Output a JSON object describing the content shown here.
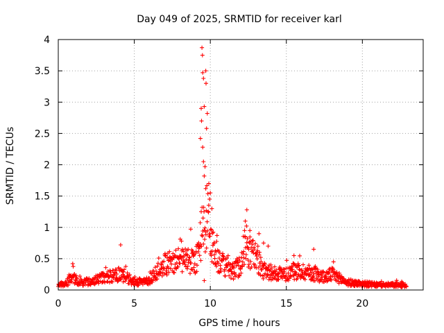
{
  "chart_data": {
    "type": "scatter",
    "title": "Day 049 of 2025, SRMTID for receiver karl",
    "xlabel": "GPS time / hours",
    "ylabel": "SRMTID / TECUs",
    "xlim": [
      0,
      24
    ],
    "ylim": [
      0,
      4
    ],
    "xticks": [
      0,
      5,
      10,
      15,
      20
    ],
    "xtick_labels": [
      "0",
      "5",
      "10",
      "15",
      "20"
    ],
    "yticks": [
      0,
      0.5,
      1,
      1.5,
      2,
      2.5,
      3,
      3.5,
      4
    ],
    "ytick_labels": [
      "0",
      "0.5",
      "1",
      "1.5",
      "2",
      "2.5",
      "3",
      "3.5",
      "4"
    ],
    "grid": true,
    "marker": "+",
    "color": "#ff0000",
    "series": [
      {
        "name": "SRMTID",
        "x_range": [
          0,
          22.9
        ],
        "profile": [
          [
            0.0,
            0.08
          ],
          [
            0.5,
            0.1
          ],
          [
            0.9,
            0.2
          ],
          [
            1.5,
            0.12
          ],
          [
            2.5,
            0.15
          ],
          [
            3.0,
            0.2
          ],
          [
            3.5,
            0.22
          ],
          [
            4.0,
            0.25
          ],
          [
            4.5,
            0.2
          ],
          [
            5.0,
            0.12
          ],
          [
            6.0,
            0.15
          ],
          [
            6.5,
            0.3
          ],
          [
            7.0,
            0.4
          ],
          [
            7.5,
            0.45
          ],
          [
            8.0,
            0.5
          ],
          [
            8.5,
            0.45
          ],
          [
            9.0,
            0.45
          ],
          [
            9.3,
            0.6
          ],
          [
            9.45,
            1.1
          ],
          [
            9.6,
            0.9
          ],
          [
            9.8,
            1.2
          ],
          [
            10.0,
            0.8
          ],
          [
            10.5,
            0.5
          ],
          [
            11.0,
            0.35
          ],
          [
            11.5,
            0.3
          ],
          [
            12.0,
            0.4
          ],
          [
            12.3,
            0.8
          ],
          [
            12.5,
            0.6
          ],
          [
            13.0,
            0.55
          ],
          [
            13.5,
            0.3
          ],
          [
            14.0,
            0.28
          ],
          [
            15.0,
            0.25
          ],
          [
            15.5,
            0.3
          ],
          [
            16.0,
            0.3
          ],
          [
            16.5,
            0.28
          ],
          [
            17.0,
            0.25
          ],
          [
            17.5,
            0.2
          ],
          [
            18.0,
            0.25
          ],
          [
            19.0,
            0.12
          ],
          [
            20.0,
            0.1
          ],
          [
            21.0,
            0.08
          ],
          [
            22.0,
            0.08
          ],
          [
            22.9,
            0.08
          ]
        ],
        "peaks": [
          [
            0.95,
            0.42
          ],
          [
            4.1,
            0.72
          ],
          [
            8.1,
            0.78
          ],
          [
            9.45,
            3.87
          ],
          [
            9.48,
            3.75
          ],
          [
            9.5,
            3.47
          ],
          [
            9.55,
            3.38
          ],
          [
            9.7,
            3.5
          ],
          [
            9.72,
            3.3
          ],
          [
            9.6,
            2.93
          ],
          [
            9.4,
            2.9
          ],
          [
            9.8,
            2.82
          ],
          [
            9.42,
            2.7
          ],
          [
            9.75,
            2.58
          ],
          [
            9.35,
            2.42
          ],
          [
            9.5,
            2.28
          ],
          [
            9.55,
            2.05
          ],
          [
            9.65,
            1.97
          ],
          [
            9.6,
            1.82
          ],
          [
            9.9,
            1.7
          ],
          [
            9.7,
            1.62
          ],
          [
            10.0,
            1.55
          ],
          [
            9.95,
            1.45
          ],
          [
            10.1,
            1.3
          ],
          [
            12.4,
            1.28
          ],
          [
            12.3,
            1.1
          ],
          [
            12.6,
            0.95
          ],
          [
            13.2,
            0.9
          ],
          [
            13.5,
            0.75
          ],
          [
            13.8,
            0.7
          ],
          [
            15.5,
            0.55
          ],
          [
            16.8,
            0.65
          ],
          [
            18.1,
            0.45
          ],
          [
            9.6,
            0.15
          ]
        ]
      }
    ]
  }
}
